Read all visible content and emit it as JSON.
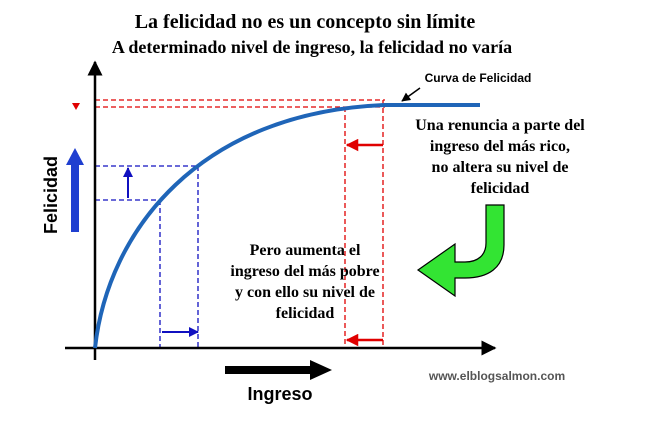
{
  "header": {
    "title": "La felicidad no es un concepto sin límite",
    "subtitle": "A determinado nivel de ingreso, la felicidad no varía"
  },
  "curve_label": "Curva de Felicidad",
  "rich_note": {
    "lines": [
      "Una renuncia a parte del",
      "ingreso del más rico,",
      "no altera su nivel de",
      "felicidad"
    ]
  },
  "poor_note": {
    "lines": [
      "Pero aumenta el",
      "ingreso del más pobre",
      "y con ello su nivel de",
      "felicidad"
    ]
  },
  "axes": {
    "y_label": "Felicidad",
    "x_label": "Ingreso"
  },
  "watermark": "www.elblogsalmon.com"
}
